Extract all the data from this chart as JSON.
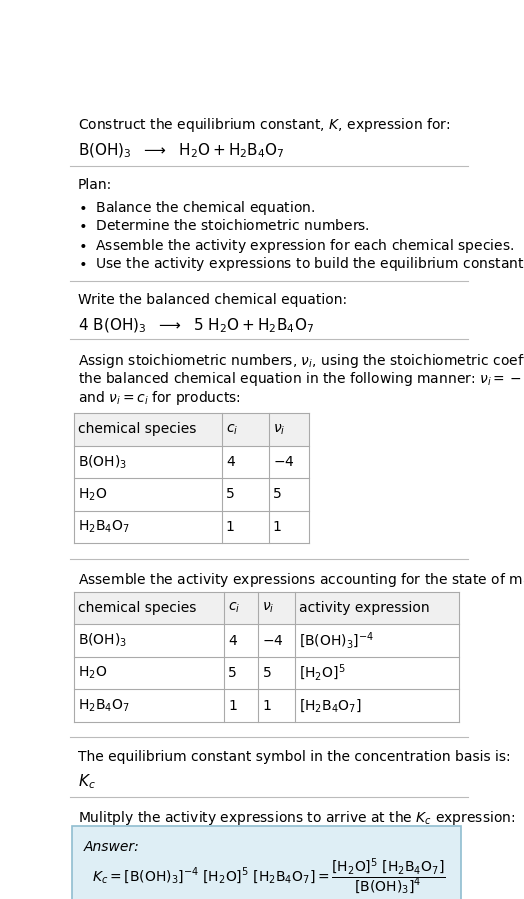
{
  "title_line1": "Construct the equilibrium constant, $K$, expression for:",
  "title_line2": "$\\mathrm{B(OH)_3}$  $\\longrightarrow$  $\\mathrm{H_2O + H_2B_4O_7}$",
  "plan_header": "Plan:",
  "plan_bullets": [
    "$\\bullet$  Balance the chemical equation.",
    "$\\bullet$  Determine the stoichiometric numbers.",
    "$\\bullet$  Assemble the activity expression for each chemical species.",
    "$\\bullet$  Use the activity expressions to build the equilibrium constant expression."
  ],
  "balanced_header": "Write the balanced chemical equation:",
  "balanced_eq": "$4\\ \\mathrm{B(OH)_3}$  $\\longrightarrow$  $5\\ \\mathrm{H_2O + H_2B_4O_7}$",
  "stoich_intro_lines": [
    "Assign stoichiometric numbers, $\\nu_i$, using the stoichiometric coefficients, $c_i$, from",
    "the balanced chemical equation in the following manner: $\\nu_i = -c_i$ for reactants",
    "and $\\nu_i = c_i$ for products:"
  ],
  "table1_headers": [
    "chemical species",
    "$c_i$",
    "$\\nu_i$"
  ],
  "table1_rows": [
    [
      "$\\mathrm{B(OH)_3}$",
      "4",
      "$-4$"
    ],
    [
      "$\\mathrm{H_2O}$",
      "5",
      "5"
    ],
    [
      "$\\mathrm{H_2B_4O_7}$",
      "1",
      "1"
    ]
  ],
  "activity_intro": "Assemble the activity expressions accounting for the state of matter and $\\nu_i$:",
  "table2_headers": [
    "chemical species",
    "$c_i$",
    "$\\nu_i$",
    "activity expression"
  ],
  "table2_rows": [
    [
      "$\\mathrm{B(OH)_3}$",
      "4",
      "$-4$",
      "$[\\mathrm{B(OH)_3}]^{-4}$"
    ],
    [
      "$\\mathrm{H_2O}$",
      "5",
      "5",
      "$[\\mathrm{H_2O}]^5$"
    ],
    [
      "$\\mathrm{H_2B_4O_7}$",
      "1",
      "1",
      "$[\\mathrm{H_2B_4O_7}]$"
    ]
  ],
  "kc_intro": "The equilibrium constant symbol in the concentration basis is:",
  "kc_symbol": "$K_c$",
  "multiply_intro": "Mulitply the activity expressions to arrive at the $K_c$ expression:",
  "answer_label": "Answer:",
  "answer_eq": "$K_c = [\\mathrm{B(OH)_3}]^{-4}\\ [\\mathrm{H_2O}]^5\\ [\\mathrm{H_2B_4O_7}] = \\dfrac{[\\mathrm{H_2O}]^5\\ [\\mathrm{H_2B_4O_7}]}{[\\mathrm{B(OH)_3}]^4}$",
  "bg_color": "#ffffff",
  "table_header_bg": "#f0f0f0",
  "answer_box_bg": "#deeef5",
  "answer_box_border": "#90bdd0",
  "text_color": "#000000",
  "line_color": "#bbbbbb",
  "table_line_color": "#aaaaaa",
  "font_size": 10,
  "small_font_size": 9.5
}
